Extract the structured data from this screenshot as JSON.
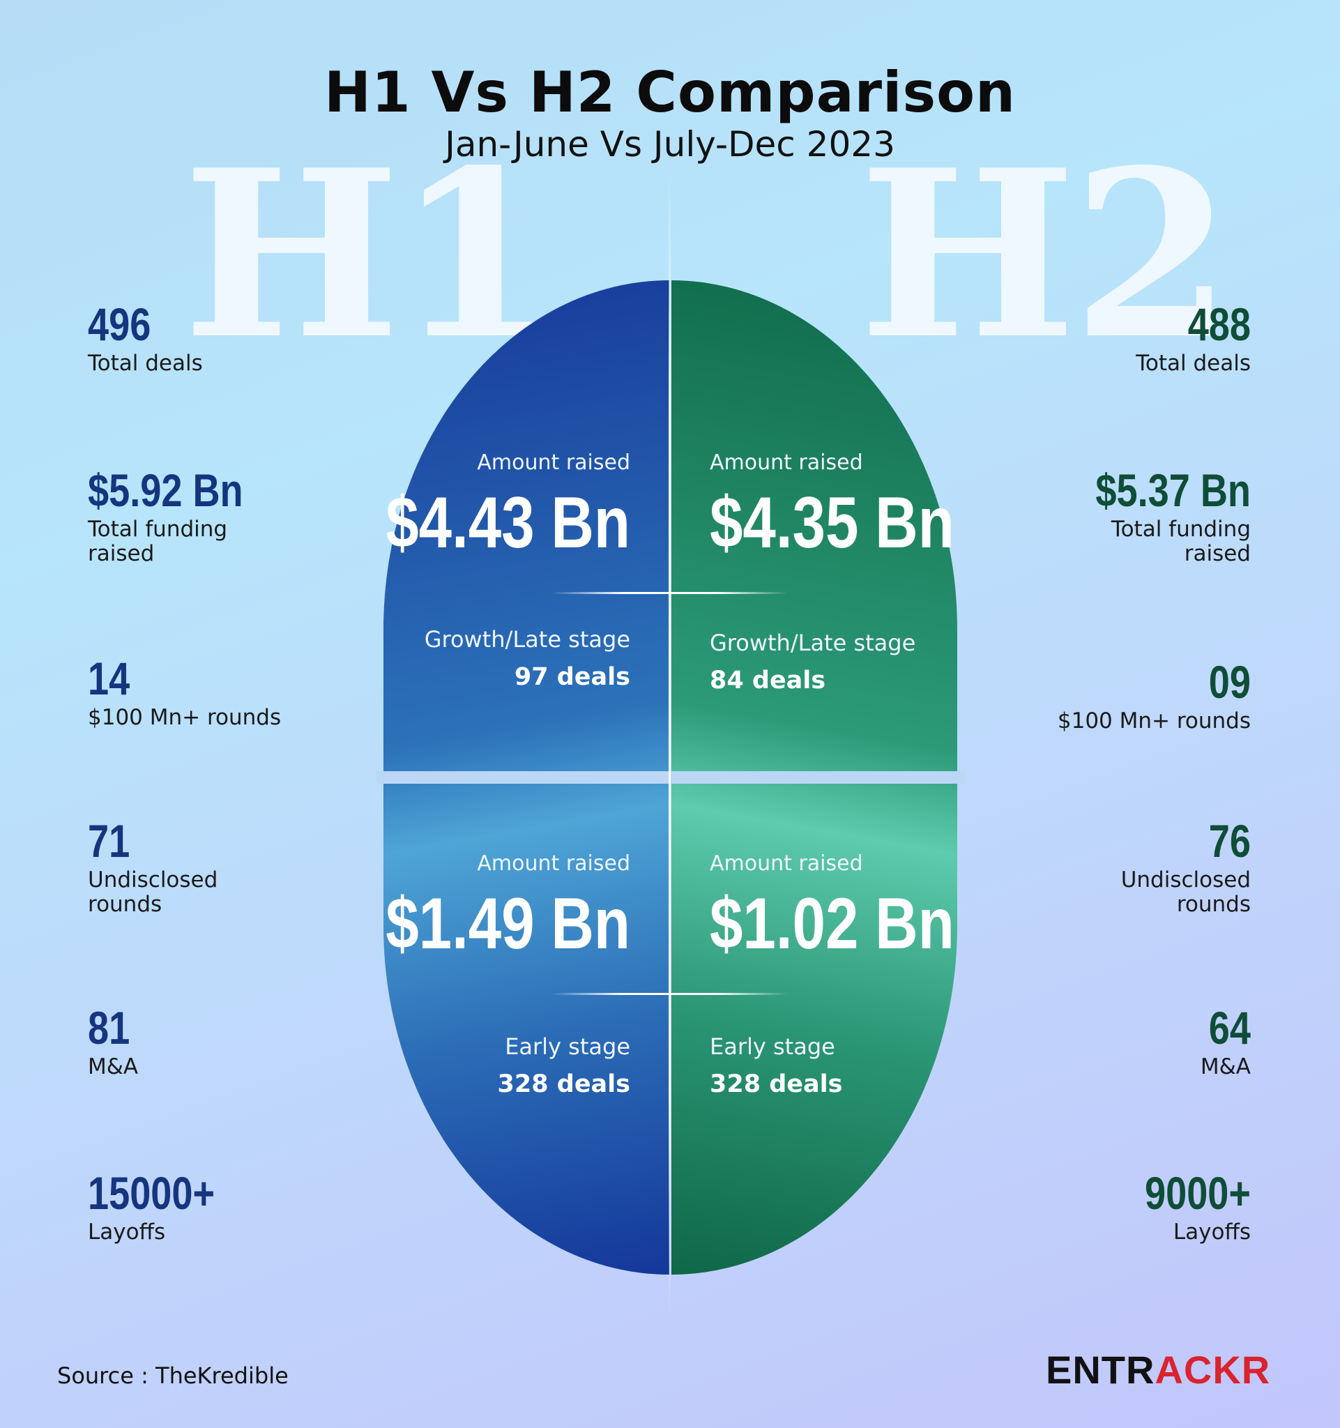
{
  "title": "H1 Vs H2 Comparison",
  "subtitle": "Jan-June Vs July-Dec 2023",
  "watermarks": {
    "left": "H1",
    "right": "H2"
  },
  "h1_stats": [
    {
      "value": "496",
      "label": "Total deals"
    },
    {
      "value": "$5.92 Bn",
      "label": "Total funding raised"
    },
    {
      "value": "14",
      "label": "$100 Mn+ rounds"
    },
    {
      "value": "71",
      "label": "Undisclosed rounds"
    },
    {
      "value": "81",
      "label": "M&A"
    },
    {
      "value": "15000+",
      "label": "Layoffs"
    }
  ],
  "h2_stats": [
    {
      "value": "488",
      "label": "Total deals"
    },
    {
      "value": "$5.37 Bn",
      "label": "Total funding raised"
    },
    {
      "value": "09",
      "label": "$100 Mn+ rounds"
    },
    {
      "value": "76",
      "label": "Undisclosed rounds"
    },
    {
      "value": "64",
      "label": "M&A"
    },
    {
      "value": "9000+",
      "label": "Layoffs"
    }
  ],
  "h1_growth": {
    "amount_label": "Amount raised",
    "amount": "$4.43 Bn",
    "stage": "Growth/Late stage",
    "deals": "97 deals"
  },
  "h2_growth": {
    "amount_label": "Amount raised",
    "amount": "$4.35 Bn",
    "stage": "Growth/Late stage",
    "deals": "84 deals"
  },
  "h1_early": {
    "amount_label": "Amount raised",
    "amount": "$1.49 Bn",
    "stage": "Early stage",
    "deals": "328 deals"
  },
  "h2_early": {
    "amount_label": "Amount raised",
    "amount": "$1.02 Bn",
    "stage": "Early stage",
    "deals": "328 deals"
  },
  "source": "Source : TheKredible",
  "logo": {
    "part1": "ENTR",
    "part2": "ACKR"
  },
  "colors": {
    "h1_blue": "#16357f",
    "h2_green": "#0f4d37",
    "logo_red": "#d9232e"
  }
}
